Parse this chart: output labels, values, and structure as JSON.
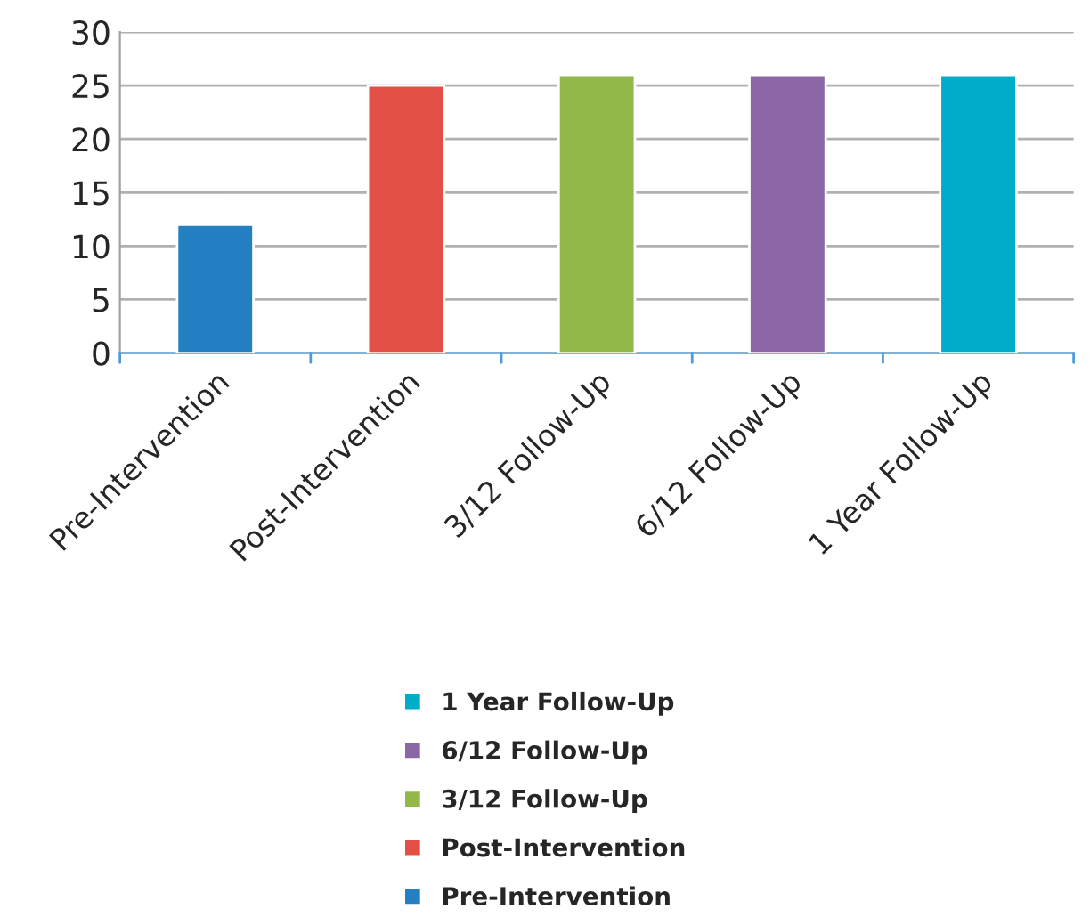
{
  "chart_data": {
    "type": "bar",
    "categories": [
      "Pre-Intervention",
      "Post-Intervention",
      "3/12 Follow-Up",
      "6/12 Follow-Up",
      "1 Year Follow-Up"
    ],
    "series": [
      {
        "name": "Pre-Intervention",
        "color": "#2580c3",
        "values": [
          12,
          null,
          null,
          null,
          null
        ]
      },
      {
        "name": "Post-Intervention",
        "color": "#e25045",
        "values": [
          null,
          25,
          null,
          null,
          null
        ]
      },
      {
        "name": "3/12 Follow-Up",
        "color": "#92b84a",
        "values": [
          null,
          null,
          26,
          null,
          null
        ]
      },
      {
        "name": "6/12 Follow-Up",
        "color": "#8c67a6",
        "values": [
          null,
          null,
          null,
          26,
          null
        ]
      },
      {
        "name": "1 Year Follow-Up",
        "color": "#00adc8",
        "values": [
          null,
          null,
          null,
          null,
          26
        ]
      }
    ],
    "stacked": true,
    "ylim": [
      0,
      30
    ],
    "yticks": [
      0,
      5,
      10,
      15,
      20,
      25,
      30
    ],
    "grid": "y",
    "legend": "bottom"
  }
}
